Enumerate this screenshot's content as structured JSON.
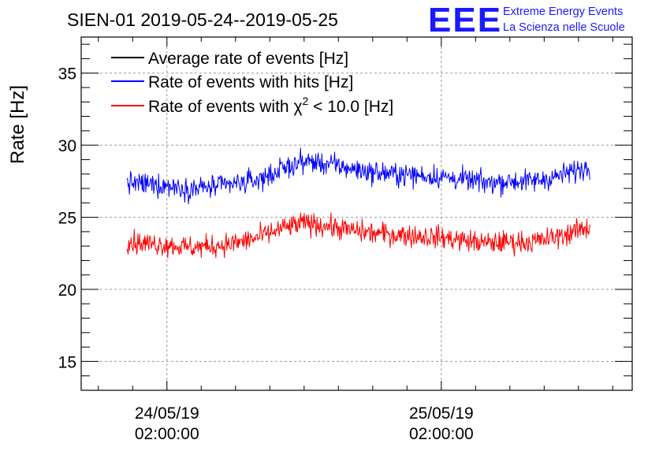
{
  "chart_data": {
    "type": "line",
    "title": "SIEN-01 2019-05-24--2019-05-25",
    "ylabel": "Rate [Hz]",
    "xlabel": "",
    "ylim": [
      13,
      37.5
    ],
    "grid": true,
    "legend_position": "top-left",
    "x_ticks": [
      {
        "date": "24/05/19",
        "time": "02:00:00",
        "hours": 0
      },
      {
        "date": "25/05/19",
        "time": "02:00:00",
        "hours": 24
      }
    ],
    "x_range_hours": [
      -7.5,
      40.7
    ],
    "y_ticks": [
      15,
      20,
      25,
      30,
      35
    ],
    "legend": [
      {
        "label": "Average rate of events [Hz]",
        "color": "#000000"
      },
      {
        "label": "Rate of events with hits [Hz]",
        "color": "#0000ff"
      },
      {
        "label_main": "Rate of events with",
        "label_sym": "χ",
        "label_sup": "2",
        "label_rest": " < 10.0 [Hz]",
        "color": "#ff0000"
      }
    ],
    "series": [
      {
        "name": "Rate of events with hits [Hz]",
        "color": "#0000ff",
        "x_hours": [
          -3.5,
          -2,
          0,
          2,
          4,
          6,
          8,
          10,
          12,
          14,
          16,
          18,
          20,
          22,
          24,
          26,
          28,
          30,
          32,
          34,
          36,
          37.0
        ],
        "values": [
          27.4,
          27.3,
          27.2,
          27.0,
          27.1,
          27.3,
          27.6,
          28.3,
          28.9,
          28.7,
          28.4,
          28.1,
          28.0,
          27.9,
          27.8,
          27.6,
          27.4,
          27.5,
          27.5,
          27.8,
          28.3,
          28.5
        ]
      },
      {
        "name": "Rate of events with χ2 < 10.0 [Hz]",
        "color": "#ff0000",
        "x_hours": [
          -3.5,
          -2,
          0,
          2,
          4,
          6,
          8,
          10,
          12,
          14,
          16,
          18,
          20,
          22,
          24,
          26,
          28,
          30,
          32,
          34,
          36,
          37.0
        ],
        "values": [
          23.3,
          23.2,
          23.1,
          22.9,
          23.0,
          23.2,
          23.6,
          24.2,
          24.6,
          24.4,
          24.1,
          23.9,
          23.8,
          23.7,
          23.6,
          23.4,
          23.2,
          23.3,
          23.3,
          23.6,
          24.1,
          24.3
        ]
      }
    ]
  },
  "logo": {
    "letters": "EEE",
    "line1": "Extreme Energy Events",
    "line2": "La Scienza nelle Scuole"
  }
}
